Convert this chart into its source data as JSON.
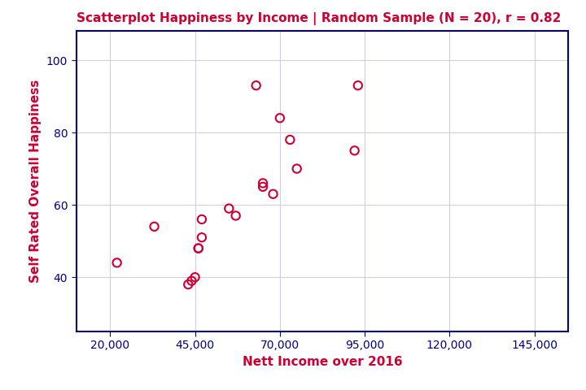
{
  "title": "Scatterplot Happiness by Income | Random Sample (N = 20), r = 0.82",
  "xlabel": "Nett Income over 2016",
  "ylabel": "Self Rated Overall Happiness",
  "title_color": "#CC0033",
  "label_color": "#CC0033",
  "tick_color": "#000080",
  "marker_color": "#CC0033",
  "spine_color": "#000080",
  "grid_color": "#d0d0d8",
  "background_color": "#ffffff",
  "xlim": [
    10000,
    155000
  ],
  "ylim": [
    25,
    108
  ],
  "xticks": [
    20000,
    45000,
    70000,
    95000,
    120000,
    145000
  ],
  "yticks": [
    40,
    60,
    80,
    100
  ],
  "x_data": [
    22000,
    33000,
    43000,
    44000,
    45000,
    46000,
    46000,
    47000,
    47000,
    55000,
    57000,
    63000,
    65000,
    65000,
    68000,
    70000,
    73000,
    75000,
    92000,
    93000
  ],
  "y_data": [
    44,
    54,
    38,
    39,
    40,
    48,
    48,
    51,
    56,
    59,
    57,
    93,
    65,
    66,
    63,
    84,
    78,
    70,
    75,
    93
  ],
  "marker_size": 55,
  "marker_linewidth": 1.5,
  "title_fontsize": 11,
  "label_fontsize": 11,
  "tick_fontsize": 10
}
